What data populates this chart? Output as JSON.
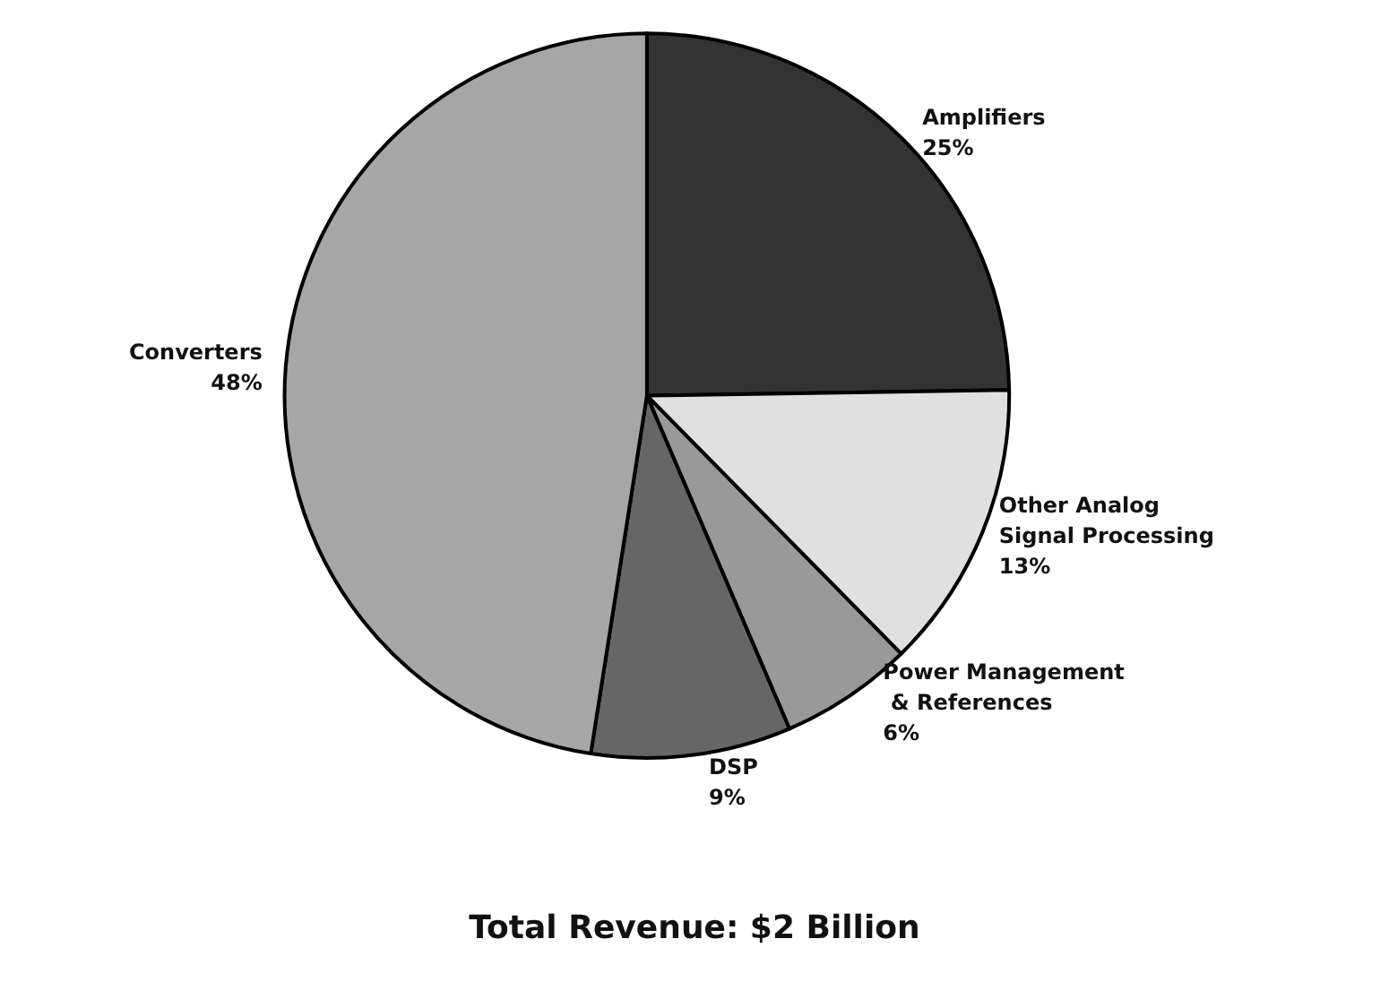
{
  "chart_data": {
    "type": "pie",
    "title": "Total Revenue: $2 Billion",
    "categories": [
      "Amplifiers",
      "Other Analog Signal Processing",
      "Power Management & References",
      "DSP",
      "Converters"
    ],
    "values": [
      25,
      13,
      6,
      9,
      48
    ],
    "colors": [
      "#333333",
      "#e0e0e0",
      "#999999",
      "#666666",
      "#a6a6a6"
    ],
    "value_labels": [
      "25%",
      "13%",
      "6%",
      "9%",
      "48%"
    ],
    "legend": false
  }
}
